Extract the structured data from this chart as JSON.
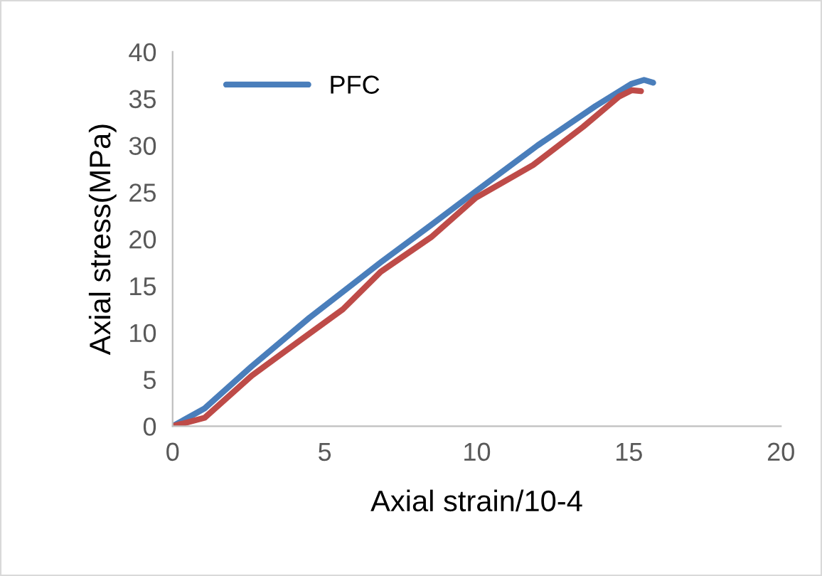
{
  "chart_data": {
    "type": "line",
    "xlabel": "Axial strain/10-4",
    "ylabel": "Axial stress(MPa)",
    "xlim": [
      0,
      20
    ],
    "xticks": [
      0,
      5,
      10,
      15,
      20
    ],
    "ylim": [
      0,
      40
    ],
    "yticks": [
      0,
      5,
      10,
      15,
      20,
      25,
      30,
      35,
      40
    ],
    "grid": false,
    "legend": "top left",
    "marker": "none",
    "line_style": "solid",
    "series": [
      {
        "name": "PFC",
        "color": "#4a7ebb",
        "x": [
          0,
          1.05,
          2.6,
          4.5,
          6.84,
          8.5,
          9.97,
          12,
          13.9,
          15.1,
          15.5,
          15.8
        ],
        "values": [
          0,
          1.9,
          6.4,
          11.6,
          17.5,
          21.5,
          25.1,
          30.0,
          34.2,
          36.6,
          37.0,
          36.7
        ]
      },
      {
        "color": "#be4b48",
        "x": [
          0,
          1.05,
          2.6,
          4.2,
          5.6,
          6.84,
          8.5,
          9.97,
          11.85,
          13.5,
          14.67,
          15.1,
          15.4
        ],
        "values": [
          0,
          0.9,
          5.4,
          9.2,
          12.5,
          16.5,
          20.2,
          24.4,
          27.9,
          32.0,
          35.2,
          35.9,
          35.8
        ]
      }
    ]
  }
}
